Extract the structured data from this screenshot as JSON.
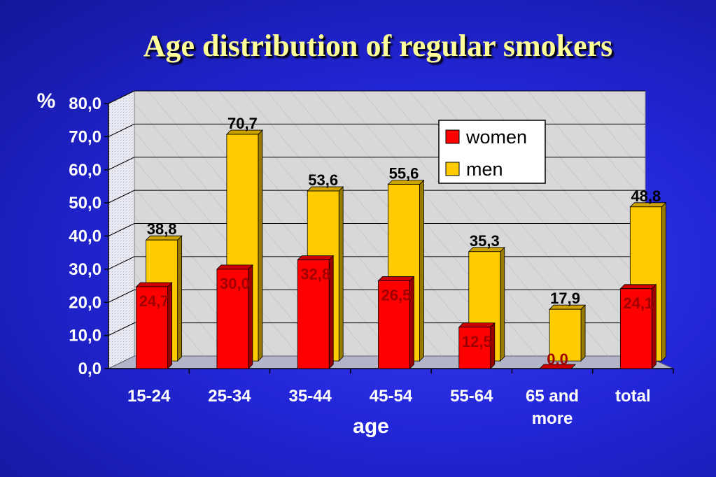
{
  "title": "Age distribution of regular smokers",
  "colors": {
    "women": "#ff0000",
    "men": "#ffcc00",
    "wall": "#d8d8d8",
    "side_wall": "#e6e6e6",
    "axis_text": "#ffffff",
    "women_label": "#a00000",
    "men_label": "#000000"
  },
  "chart_data": {
    "type": "bar",
    "title": "Age distribution of regular smokers",
    "ylabel": "%",
    "xlabel": "age",
    "ylim": [
      0,
      80
    ],
    "yticks": [
      "0,0",
      "10,0",
      "20,0",
      "30,0",
      "40,0",
      "50,0",
      "60,0",
      "70,0",
      "80,0"
    ],
    "categories": [
      "15-24",
      "25-34",
      "35-44",
      "45-54",
      "55-64",
      "65 and more",
      "total"
    ],
    "category_lines": [
      [
        "15-24"
      ],
      [
        "25-34"
      ],
      [
        "35-44"
      ],
      [
        "45-54"
      ],
      [
        "55-64"
      ],
      [
        "65 and",
        "more"
      ],
      [
        "total"
      ]
    ],
    "legend_position": "top-right",
    "grid": true,
    "series": [
      {
        "name": "women",
        "values": [
          24.7,
          30.0,
          32.8,
          26.5,
          12.5,
          0.0,
          24.1
        ],
        "labels": [
          "24,7",
          "30,0",
          "32,8",
          "26,5",
          "12,5",
          "0,0",
          "24,1"
        ]
      },
      {
        "name": "men",
        "values": [
          38.8,
          70.7,
          53.6,
          55.6,
          35.3,
          17.9,
          48.8
        ],
        "labels": [
          "38,8",
          "70,7",
          "53,6",
          "55,6",
          "35,3",
          "17,9",
          "48,8"
        ]
      }
    ]
  }
}
